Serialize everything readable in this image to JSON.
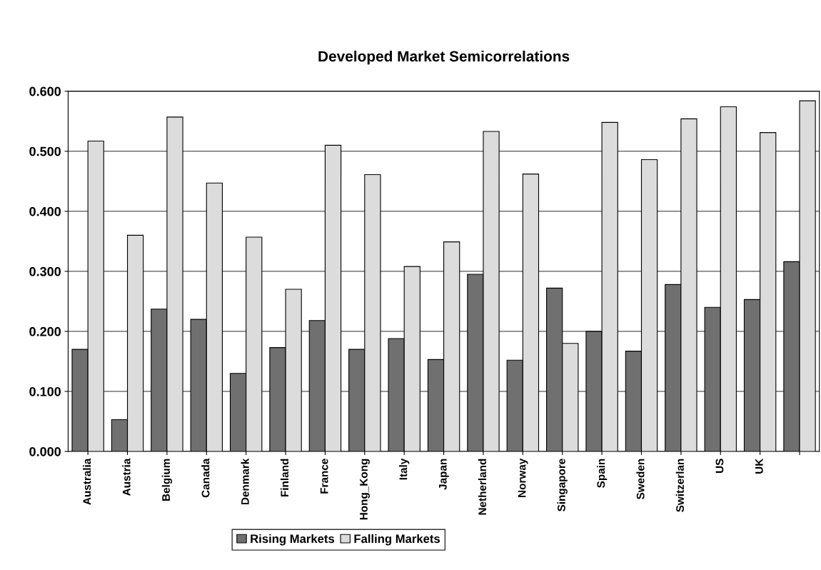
{
  "chart_data": {
    "type": "bar",
    "title": "Developed Market Semicorrelations",
    "categories": [
      "Australia",
      "Austria",
      "Belgium",
      "Canada",
      "Denmark",
      "Finland",
      "France",
      "Hong_Kong",
      "Italy",
      "Japan",
      "Netherland",
      "Norway",
      "Singapore",
      "Spain",
      "Sweden",
      "Switzerlan",
      "US",
      "UK",
      null
    ],
    "series": [
      {
        "name": "Rising Markets",
        "color": "#707070",
        "values": [
          0.17,
          0.053,
          0.237,
          0.22,
          0.13,
          0.173,
          0.218,
          0.17,
          0.188,
          0.153,
          0.295,
          0.152,
          0.272,
          0.2,
          0.167,
          0.278,
          0.24,
          0.253,
          0.316
        ]
      },
      {
        "name": "Falling Markets",
        "color": "#dcdcdc",
        "values": [
          0.517,
          0.36,
          0.557,
          0.447,
          0.357,
          0.27,
          0.51,
          0.461,
          0.308,
          0.349,
          0.533,
          0.462,
          0.18,
          0.548,
          0.486,
          0.554,
          0.574,
          0.531,
          0.584
        ]
      }
    ],
    "ylim": [
      0,
      0.6
    ],
    "yticks": [
      {
        "value": 0,
        "label": "0.000"
      },
      {
        "value": 0.1,
        "label": "0.100"
      },
      {
        "value": 0.2,
        "label": "0.200"
      },
      {
        "value": 0.3,
        "label": "0.300"
      },
      {
        "value": 0.4,
        "label": "0.400"
      },
      {
        "value": 0.5,
        "label": "0.500"
      },
      {
        "value": 0.6,
        "label": "0.600"
      }
    ],
    "grid": "y",
    "legend": "bottom"
  }
}
